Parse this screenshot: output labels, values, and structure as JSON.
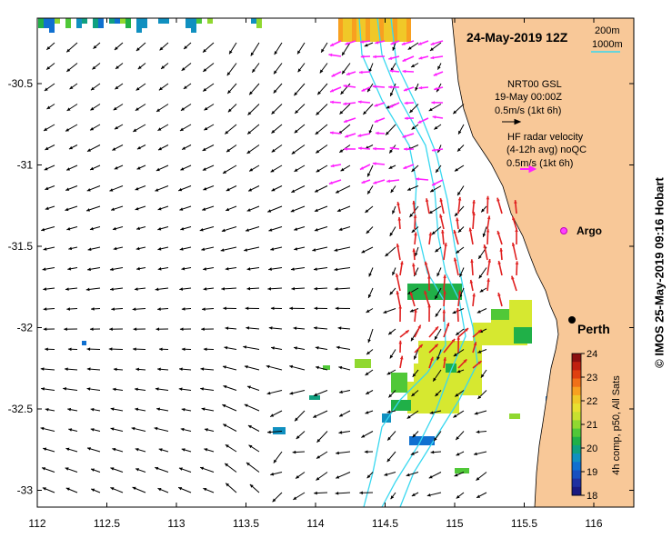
{
  "title": "24-May-2019 12Z",
  "x_ticks": [
    "112",
    "112.5",
    "113",
    "113.5",
    "114",
    "114.5",
    "115",
    "115.5",
    "116"
  ],
  "y_ticks": [
    "-30.5",
    "-31",
    "-31.5",
    "-32",
    "-32.5",
    "-33"
  ],
  "depth_legend": {
    "a": "200m",
    "b": "1000m"
  },
  "model_legend": {
    "name": "NRT00 GSL",
    "date": "19-May 00:00Z",
    "scale": "0.5m/s (1kt 6h)"
  },
  "radar_legend": {
    "l1": "HF radar velocity",
    "l2": "(4-12h avg) noQC",
    "scale": "0.5m/s (1kt 6h)"
  },
  "argo_label": "Argo",
  "city_label": "Perth",
  "colorbar": {
    "ticks": [
      "24",
      "23",
      "22",
      "21",
      "20",
      "19",
      "18"
    ],
    "label": "4h comp, p50, All Sats"
  },
  "credit": "© IMOS 25-May-2019 09:16 Hobart",
  "colors": {
    "land": "#f8c898",
    "sst_warm": "#d6e830",
    "radar": "#e02020",
    "radar_old": "#ff20ff",
    "isobath": "#38d8f0"
  }
}
